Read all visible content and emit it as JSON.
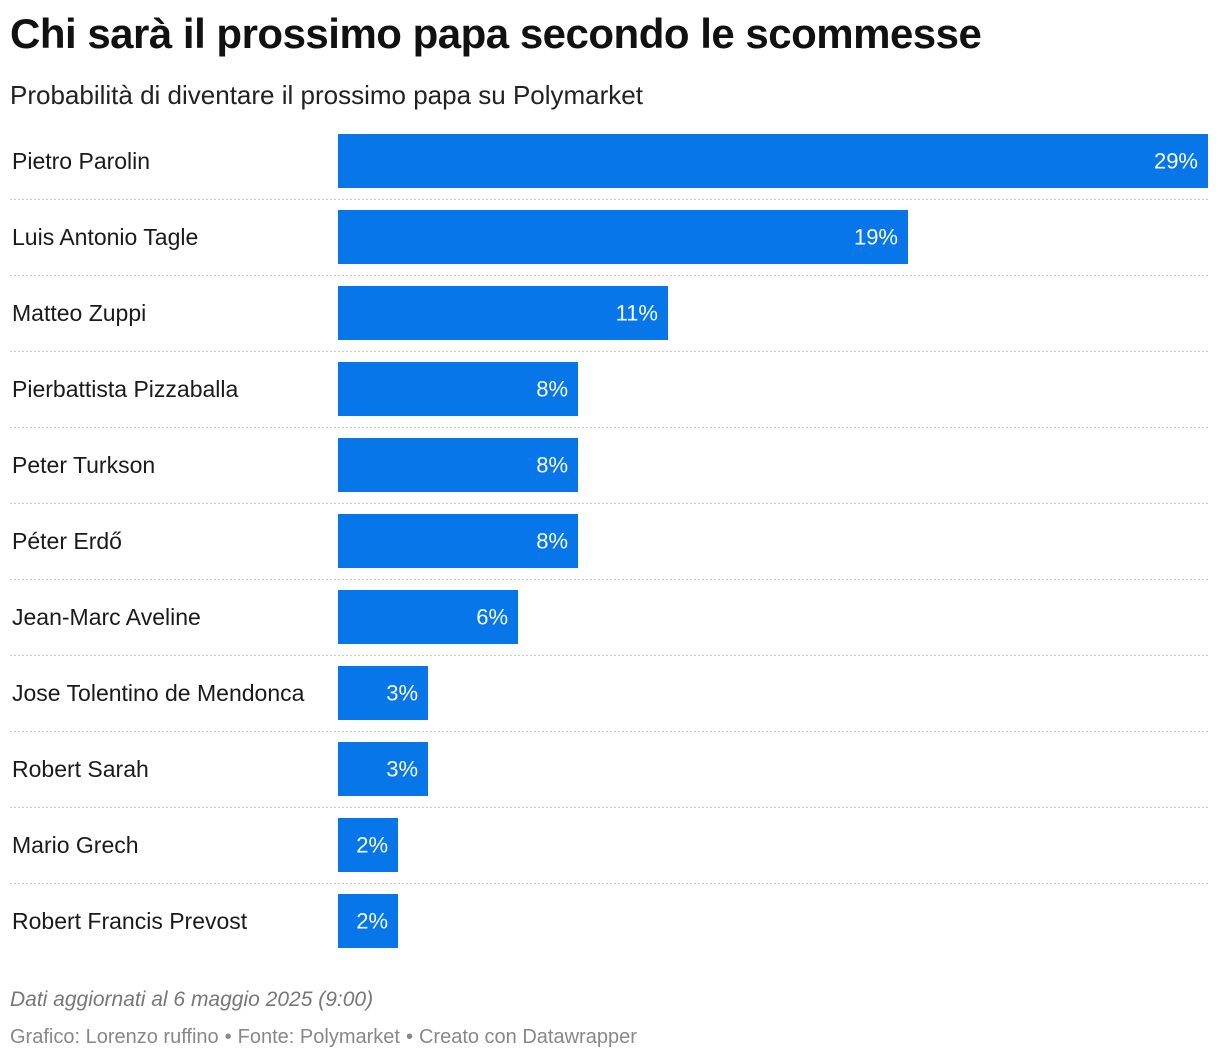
{
  "header": {
    "title": "Chi sarà il prossimo papa secondo le scommesse",
    "subtitle": "Probabilità di diventare il prossimo papa su Polymarket"
  },
  "chart_data": {
    "type": "bar",
    "orientation": "horizontal",
    "categories": [
      "Pietro Parolin",
      "Luis Antonio Tagle",
      "Matteo Zuppi",
      "Pierbattista Pizzaballa",
      "Peter Turkson",
      "Péter Erdő",
      "Jean-Marc Aveline",
      "Jose Tolentino de Mendonca",
      "Robert Sarah",
      "Mario Grech",
      "Robert Francis Prevost"
    ],
    "values": [
      29,
      19,
      11,
      8,
      8,
      8,
      6,
      3,
      3,
      2,
      2
    ],
    "value_suffix": "%",
    "xlim": [
      0,
      29
    ],
    "bar_color": "#0776e8",
    "label_color": "#ffffff",
    "grid": false,
    "row_separator": "dotted"
  },
  "footer": {
    "note": "Dati aggiornati al 6 maggio 2025 (9:00)",
    "credit": "Grafico: Lorenzo ruffino",
    "source": "Fonte: Polymarket",
    "tool": "Creato con Datawrapper",
    "separator": "•"
  }
}
